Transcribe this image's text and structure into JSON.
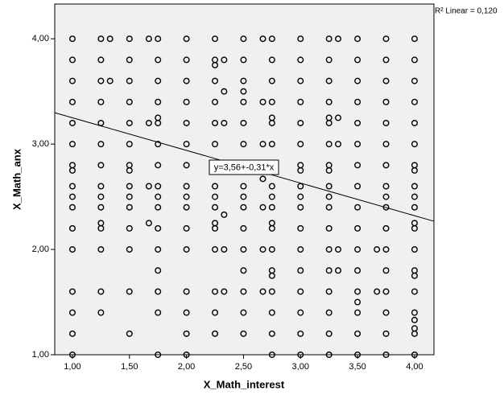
{
  "chart_data": {
    "type": "scatter",
    "x_label": "X_Math_interest",
    "y_label": "X_Math_anx",
    "annotation": "R² Linear = 0,120",
    "fit": {
      "label": "y=3,56+-0,31*x",
      "intercept": 3.56,
      "slope": -0.31
    },
    "xlim": [
      0.845,
      4.17
    ],
    "ylim": [
      1.0,
      4.33
    ],
    "xticks": [
      {
        "value": 1,
        "label": "1,00"
      },
      {
        "value": 1.5,
        "label": "1,50"
      },
      {
        "value": 2,
        "label": "2,00"
      },
      {
        "value": 2.5,
        "label": "2,50"
      },
      {
        "value": 3,
        "label": "3,00"
      },
      {
        "value": 3.5,
        "label": "3,50"
      },
      {
        "value": 4,
        "label": "4,00"
      }
    ],
    "yticks": [
      {
        "value": 1,
        "label": "1,00"
      },
      {
        "value": 2,
        "label": "2,00"
      },
      {
        "value": 3,
        "label": "3,00"
      },
      {
        "value": 4,
        "label": "4,00"
      }
    ],
    "color": "#000000",
    "x": [
      1,
      1,
      1,
      1,
      1,
      1,
      1,
      1,
      1,
      1,
      1,
      1,
      1,
      1,
      1,
      1,
      1,
      1.25,
      1.25,
      1.25,
      1.25,
      1.25,
      1.25,
      1.25,
      1.25,
      1.25,
      1.25,
      1.25,
      1.25,
      1.25,
      1.25,
      1.25,
      1.33,
      1.33,
      1.5,
      1.5,
      1.5,
      1.5,
      1.5,
      1.5,
      1.5,
      1.5,
      1.5,
      1.5,
      1.5,
      1.5,
      1.5,
      1.5,
      1.5,
      1.67,
      1.67,
      1.67,
      1.67,
      1.75,
      1.75,
      1.75,
      1.75,
      1.75,
      1.75,
      1.75,
      1.75,
      1.75,
      1.75,
      1.75,
      1.75,
      1.75,
      1.75,
      1.75,
      1.75,
      1.75,
      2,
      2,
      2,
      2,
      2,
      2,
      2,
      2,
      2,
      2,
      2,
      2,
      2,
      2,
      2,
      2,
      2.25,
      2.25,
      2.25,
      2.25,
      2.25,
      2.25,
      2.25,
      2.25,
      2.25,
      2.25,
      2.25,
      2.25,
      2.25,
      2.25,
      2.25,
      2.25,
      2.25,
      2.33,
      2.33,
      2.33,
      2.33,
      2.33,
      2.33,
      2.5,
      2.5,
      2.5,
      2.5,
      2.5,
      2.5,
      2.5,
      2.5,
      2.5,
      2.5,
      2.5,
      2.5,
      2.5,
      2.5,
      2.5,
      2.5,
      2.5,
      2.67,
      2.67,
      2.67,
      2.67,
      2.67,
      2.67,
      2.67,
      2.75,
      2.75,
      2.75,
      2.75,
      2.75,
      2.75,
      2.75,
      2.75,
      2.75,
      2.75,
      2.75,
      2.75,
      2.75,
      2.75,
      2.75,
      2.75,
      2.75,
      2.75,
      2.75,
      2.75,
      3,
      3,
      3,
      3,
      3,
      3,
      3,
      3,
      3,
      3,
      3,
      3,
      3,
      3,
      3,
      3,
      3,
      3,
      3.25,
      3.25,
      3.25,
      3.25,
      3.25,
      3.25,
      3.25,
      3.25,
      3.25,
      3.25,
      3.25,
      3.25,
      3.25,
      3.25,
      3.25,
      3.25,
      3.25,
      3.25,
      3.25,
      3.33,
      3.33,
      3.33,
      3.33,
      3.33,
      3.5,
      3.5,
      3.5,
      3.5,
      3.5,
      3.5,
      3.5,
      3.5,
      3.5,
      3.5,
      3.5,
      3.5,
      3.5,
      3.5,
      3.5,
      3.5,
      3.5,
      3.67,
      3.67,
      3.75,
      3.75,
      3.75,
      3.75,
      3.75,
      3.75,
      3.75,
      3.75,
      3.75,
      3.75,
      3.75,
      3.75,
      3.75,
      3.75,
      3.75,
      3.75,
      3.75,
      4,
      4,
      4,
      4,
      4,
      4,
      4,
      4,
      4,
      4,
      4,
      4,
      4,
      4,
      4,
      4,
      4,
      4,
      4,
      4,
      4,
      4
    ],
    "y": [
      4,
      3.8,
      3.6,
      3.4,
      3.2,
      3,
      2.8,
      2.75,
      2.6,
      2.5,
      2.4,
      2.2,
      2,
      1.6,
      1.4,
      1.2,
      1,
      4,
      3.8,
      3.6,
      3.4,
      3.2,
      3,
      2.8,
      2.6,
      2.5,
      2.4,
      2.25,
      2.2,
      2,
      1.6,
      1.4,
      4,
      3.6,
      4,
      3.8,
      3.6,
      3.4,
      3.2,
      3,
      2.8,
      2.75,
      2.6,
      2.5,
      2.4,
      2.2,
      2,
      1.6,
      1.2,
      4,
      3.2,
      2.6,
      2.25,
      4,
      3.8,
      3.6,
      3.4,
      3.25,
      3.2,
      3,
      2.8,
      2.6,
      2.5,
      2.4,
      2.2,
      2,
      1.8,
      1.6,
      1.4,
      1,
      4,
      3.8,
      3.6,
      3.4,
      3.2,
      3,
      2.8,
      2.6,
      2.5,
      2.4,
      2.2,
      2,
      1.6,
      1.4,
      1.2,
      1,
      4,
      3.8,
      3.75,
      3.6,
      3.4,
      3.2,
      3,
      2.8,
      2.6,
      2.5,
      2.4,
      2.25,
      2.2,
      2,
      1.6,
      1.4,
      1.2,
      3.8,
      3.5,
      3.2,
      2.33,
      2,
      1.6,
      4,
      3.8,
      3.6,
      3.5,
      3.4,
      3.2,
      3,
      2.8,
      2.6,
      2.5,
      2.4,
      2.2,
      2,
      1.8,
      1.6,
      1.4,
      1.2,
      4,
      3.4,
      3,
      2.67,
      2.4,
      2,
      1.6,
      4,
      3.8,
      3.6,
      3.4,
      3.25,
      3.2,
      3,
      2.8,
      2.6,
      2.5,
      2.4,
      2.25,
      2.2,
      2,
      1.8,
      1.75,
      1.6,
      1.4,
      1.2,
      1,
      4,
      3.8,
      3.6,
      3.4,
      3.2,
      3,
      2.8,
      2.75,
      2.6,
      2.5,
      2.4,
      2.2,
      2,
      1.8,
      1.6,
      1.4,
      1.2,
      1,
      4,
      3.8,
      3.6,
      3.4,
      3.25,
      3.2,
      3,
      2.8,
      2.75,
      2.6,
      2.5,
      2.4,
      2.2,
      2,
      1.8,
      1.6,
      1.4,
      1.2,
      1,
      4,
      3.25,
      3,
      2,
      1.8,
      4,
      3.8,
      3.6,
      3.4,
      3.2,
      3,
      2.8,
      2.6,
      2.4,
      2.2,
      2,
      1.8,
      1.6,
      1.5,
      1.4,
      1.2,
      1,
      2,
      1.6,
      4,
      3.8,
      3.6,
      3.4,
      3.2,
      3,
      2.8,
      2.6,
      2.5,
      2.4,
      2.2,
      2,
      1.8,
      1.6,
      1.4,
      1.2,
      1,
      4,
      3.8,
      3.6,
      3.4,
      3.2,
      3,
      2.8,
      2.75,
      2.6,
      2.5,
      2.4,
      2.25,
      2.2,
      2,
      1.8,
      1.75,
      1.6,
      1.4,
      1.33,
      1.25,
      1.2,
      1
    ]
  }
}
